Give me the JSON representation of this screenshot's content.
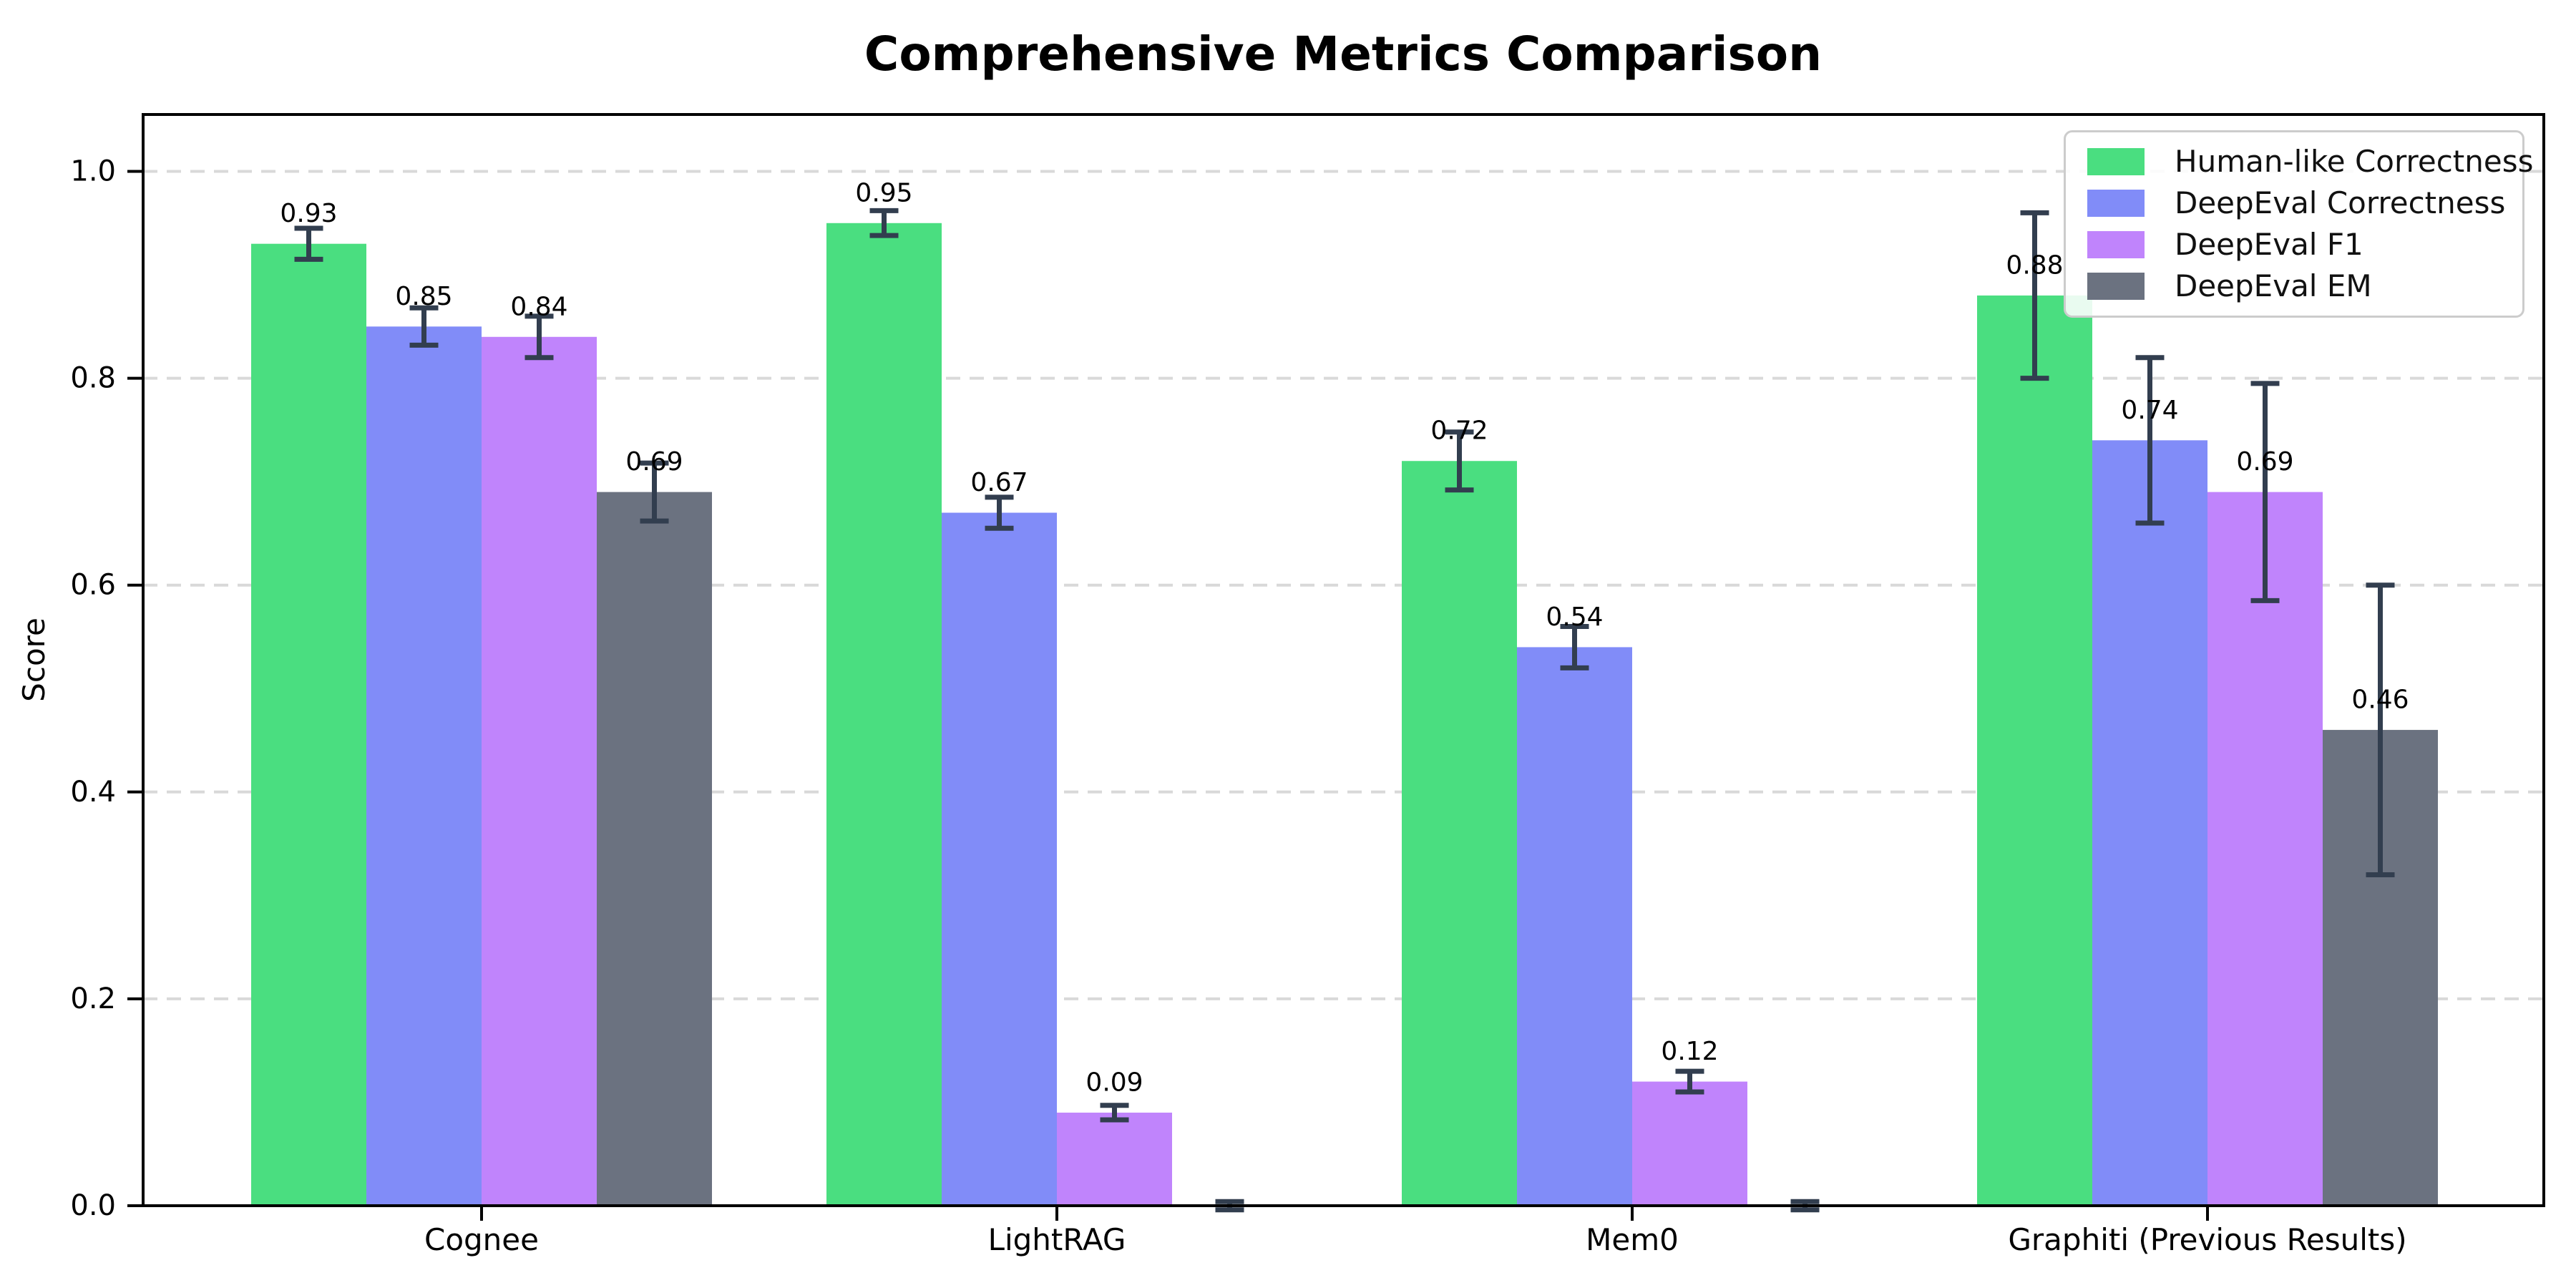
{
  "chart_data": {
    "type": "bar",
    "title": "Comprehensive Metrics Comparison",
    "xlabel": "",
    "ylabel": "Score",
    "categories": [
      "Cognee",
      "LightRAG",
      "Mem0",
      "Graphiti (Previous Results)"
    ],
    "series": [
      {
        "name": "Human-like Correctness",
        "color": "#4ade80",
        "values": [
          0.93,
          0.95,
          0.72,
          0.88
        ],
        "errors": [
          0.015,
          0.012,
          0.028,
          0.08
        ]
      },
      {
        "name": "DeepEval Correctness",
        "color": "#818cf8",
        "values": [
          0.85,
          0.67,
          0.54,
          0.74
        ],
        "errors": [
          0.018,
          0.015,
          0.02,
          0.08
        ]
      },
      {
        "name": "DeepEval F1",
        "color": "#c084fc",
        "values": [
          0.84,
          0.09,
          0.12,
          0.69
        ],
        "errors": [
          0.02,
          0.007,
          0.01,
          0.105
        ]
      },
      {
        "name": "DeepEval EM",
        "color": "#6b7280",
        "values": [
          0.69,
          0.0,
          0.0,
          0.46
        ],
        "errors": [
          0.028,
          0.004,
          0.004,
          0.14
        ]
      }
    ],
    "bar_value_labels": [
      [
        "0.93",
        "0.95",
        "0.72",
        "0.88"
      ],
      [
        "0.85",
        "0.67",
        "0.54",
        "0.74"
      ],
      [
        "0.84",
        "0.09",
        "0.12",
        "0.69"
      ],
      [
        "0.69",
        "",
        "",
        "0.46"
      ]
    ],
    "yticks": [
      0.0,
      0.2,
      0.4,
      0.6,
      0.8,
      1.0
    ],
    "ytick_labels": [
      "0.0",
      "0.2",
      "0.4",
      "0.6",
      "0.8",
      "1.0"
    ],
    "ylim": [
      0,
      1.055
    ],
    "grid": "horizontal-dashed",
    "legend_position": "upper right",
    "error_bar_color": "#323e4f",
    "grid_color": "#d9d9d9",
    "axis_color": "#000000"
  }
}
